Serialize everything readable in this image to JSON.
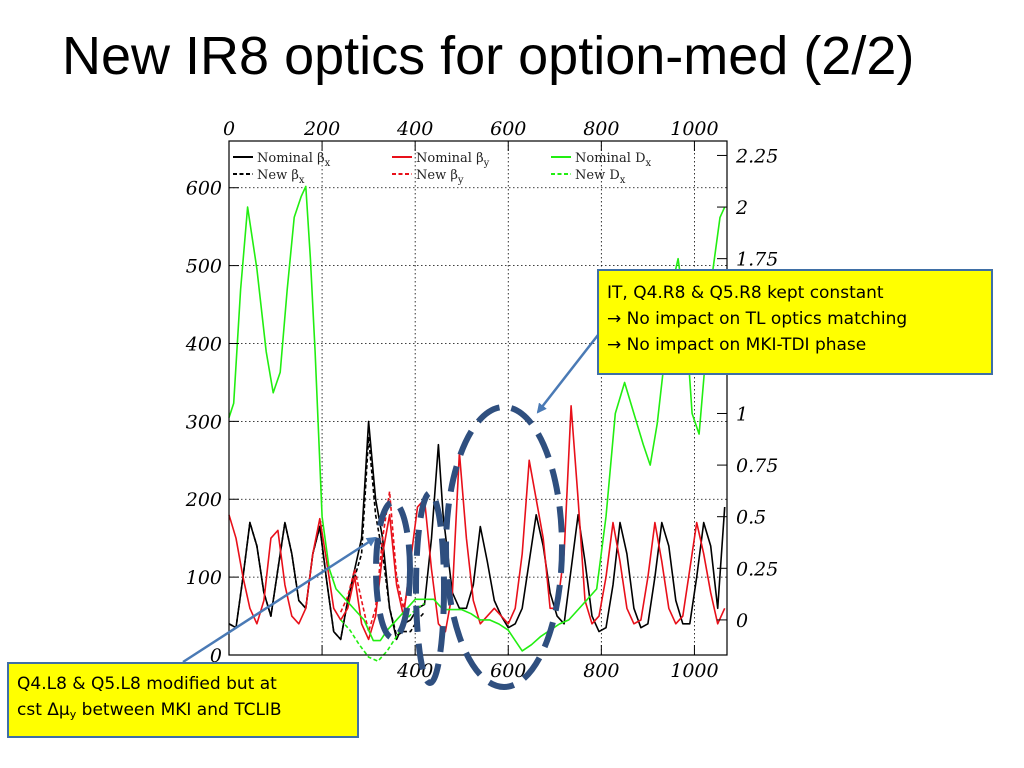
{
  "slide": {
    "title": "New IR8 optics for option-med (2/2)"
  },
  "annotations": {
    "right": {
      "lines": [
        "IT, Q4.R8 & Q5.R8 kept constant",
        "→ No impact on TL optics matching",
        "→ No impact on MKI-TDI phase"
      ]
    },
    "left": {
      "line1": "Q4.L8 & Q5.L8 modified but at",
      "line2_prefix": "cst ",
      "delta_mu": "Δμ",
      "subscript": "y",
      "line2_suffix": " between MKI and TCLIB"
    }
  },
  "chart_data": {
    "type": "line",
    "x_top_ticks": [
      "0",
      "200",
      "400",
      "600",
      "800",
      "1000"
    ],
    "x_bottom_ticks": [
      "400",
      "600",
      "800",
      "1000"
    ],
    "y_left_ticks": [
      "0",
      "100",
      "200",
      "300",
      "400",
      "500",
      "600"
    ],
    "y_right_ticks": [
      "0",
      "0.25",
      "0.5",
      "0.75",
      "1",
      "1.75",
      "2",
      "2.25"
    ],
    "xlim": [
      0,
      1070
    ],
    "ylim_left": [
      0,
      660
    ],
    "ylim_right": [
      -0.17,
      2.32
    ],
    "grid": true,
    "legend_position": "top",
    "legend": [
      {
        "label": "Nominal β",
        "sub": "x",
        "color": "#000000",
        "dash": "solid"
      },
      {
        "label": "New β",
        "sub": "x",
        "color": "#000000",
        "dash": "dashed"
      },
      {
        "label": "Nominal β",
        "sub": "y",
        "color": "#e8101a",
        "dash": "solid"
      },
      {
        "label": "New β",
        "sub": "y",
        "color": "#e8101a",
        "dash": "dashed"
      },
      {
        "label": "Nominal D",
        "sub": "x",
        "color": "#22ee11",
        "dash": "solid"
      },
      {
        "label": "New D",
        "sub": "x",
        "color": "#22ee11",
        "dash": "dashed"
      }
    ],
    "series": [
      {
        "name": "Nominal βx",
        "axis": "left",
        "color": "#000000",
        "dash": "solid",
        "x": [
          0,
          15,
          30,
          45,
          60,
          75,
          90,
          105,
          120,
          135,
          150,
          165,
          180,
          195,
          210,
          225,
          240,
          255,
          270,
          285,
          300,
          315,
          330,
          345,
          360,
          375,
          390,
          405,
          420,
          435,
          450,
          460,
          470,
          480,
          495,
          510,
          525,
          540,
          555,
          570,
          585,
          600,
          615,
          630,
          645,
          660,
          675,
          690,
          705,
          720,
          735,
          750,
          765,
          780,
          795,
          810,
          825,
          840,
          855,
          870,
          885,
          900,
          915,
          930,
          945,
          960,
          975,
          990,
          1005,
          1020,
          1035,
          1050,
          1065
        ],
        "y": [
          40,
          35,
          100,
          170,
          140,
          80,
          50,
          110,
          170,
          130,
          70,
          60,
          130,
          165,
          95,
          30,
          20,
          70,
          110,
          150,
          300,
          200,
          150,
          60,
          20,
          40,
          45,
          60,
          65,
          150,
          270,
          180,
          130,
          80,
          60,
          60,
          90,
          165,
          120,
          70,
          50,
          35,
          40,
          60,
          120,
          180,
          140,
          80,
          50,
          40,
          110,
          180,
          120,
          50,
          30,
          35,
          90,
          170,
          130,
          60,
          35,
          40,
          100,
          170,
          140,
          70,
          40,
          40,
          100,
          170,
          140,
          60,
          190
        ]
      },
      {
        "name": "New βx",
        "axis": "left",
        "color": "#000000",
        "dash": "dashed",
        "x": [
          0,
          15,
          30,
          45,
          60,
          75,
          90,
          105,
          120,
          135,
          150,
          165,
          180,
          195,
          210,
          225,
          240,
          255,
          270,
          285,
          300,
          315,
          330,
          345,
          360,
          375,
          390,
          405,
          420
        ],
        "y": [
          40,
          35,
          100,
          170,
          140,
          80,
          50,
          110,
          170,
          130,
          70,
          60,
          130,
          165,
          95,
          30,
          20,
          70,
          100,
          130,
          280,
          180,
          130,
          60,
          25,
          30,
          30,
          45,
          55
        ]
      },
      {
        "name": "Nominal βy",
        "axis": "left",
        "color": "#e8101a",
        "dash": "solid",
        "x": [
          0,
          15,
          30,
          45,
          60,
          75,
          90,
          105,
          120,
          135,
          150,
          165,
          180,
          195,
          210,
          225,
          240,
          255,
          270,
          285,
          300,
          315,
          330,
          345,
          360,
          375,
          390,
          405,
          420,
          435,
          450,
          465,
          480,
          495,
          510,
          525,
          540,
          555,
          570,
          585,
          600,
          615,
          630,
          645,
          660,
          675,
          690,
          705,
          720,
          735,
          750,
          765,
          780,
          795,
          810,
          825,
          840,
          855,
          870,
          885,
          900,
          915,
          930,
          945,
          960,
          975,
          990,
          1005,
          1020,
          1035,
          1050,
          1065
        ],
        "y": [
          180,
          150,
          100,
          60,
          40,
          70,
          150,
          160,
          90,
          50,
          40,
          60,
          130,
          175,
          120,
          60,
          45,
          60,
          100,
          40,
          20,
          50,
          130,
          180,
          90,
          50,
          120,
          190,
          200,
          110,
          40,
          30,
          80,
          260,
          150,
          70,
          40,
          50,
          60,
          50,
          40,
          60,
          130,
          250,
          200,
          150,
          60,
          60,
          130,
          320,
          200,
          70,
          40,
          50,
          100,
          170,
          120,
          60,
          40,
          45,
          100,
          170,
          120,
          60,
          40,
          50,
          110,
          170,
          130,
          80,
          40,
          60
        ]
      },
      {
        "name": "New βy",
        "axis": "left",
        "color": "#e8101a",
        "dash": "dashed",
        "x": [
          240,
          255,
          270,
          285,
          300,
          315,
          330,
          345,
          360,
          375,
          390
        ],
        "y": [
          55,
          75,
          110,
          70,
          30,
          60,
          150,
          210,
          100,
          60,
          100
        ]
      },
      {
        "name": "Nominal Dx",
        "axis": "right",
        "color": "#22ee11",
        "dash": "solid",
        "x": [
          0,
          10,
          25,
          40,
          60,
          80,
          95,
          110,
          125,
          140,
          155,
          165,
          175,
          185,
          200,
          215,
          230,
          250,
          270,
          290,
          310,
          325,
          340,
          360,
          380,
          400,
          420,
          440,
          460,
          480,
          500,
          520,
          540,
          560,
          580,
          600,
          615,
          630,
          650,
          670,
          690,
          710,
          730,
          750,
          770,
          790,
          810,
          830,
          850,
          870,
          890,
          905,
          920,
          935,
          950,
          965,
          980,
          995,
          1010,
          1025,
          1040,
          1055,
          1065
        ],
        "y": [
          0.98,
          1.05,
          1.6,
          2.0,
          1.7,
          1.3,
          1.1,
          1.2,
          1.6,
          1.95,
          2.05,
          2.1,
          1.75,
          1.3,
          0.5,
          0.25,
          0.15,
          0.1,
          0.05,
          0.0,
          -0.1,
          -0.1,
          -0.05,
          0.0,
          0.05,
          0.1,
          0.1,
          0.1,
          0.05,
          0.05,
          0.05,
          0.03,
          0.0,
          0.0,
          -0.02,
          -0.05,
          -0.1,
          -0.15,
          -0.12,
          -0.08,
          -0.05,
          -0.02,
          0.0,
          0.05,
          0.1,
          0.15,
          0.5,
          1.0,
          1.15,
          1.0,
          0.85,
          0.75,
          0.95,
          1.25,
          1.6,
          1.75,
          1.5,
          1.0,
          0.9,
          1.3,
          1.7,
          1.95,
          2.0
        ]
      },
      {
        "name": "New Dx",
        "axis": "right",
        "color": "#22ee11",
        "dash": "dashed",
        "x": [
          240,
          260,
          280,
          300,
          320,
          340,
          360,
          380,
          400,
          420
        ],
        "y": [
          0.0,
          -0.05,
          -0.12,
          -0.18,
          -0.2,
          -0.15,
          -0.08,
          0.0,
          0.05,
          0.08
        ]
      }
    ]
  }
}
